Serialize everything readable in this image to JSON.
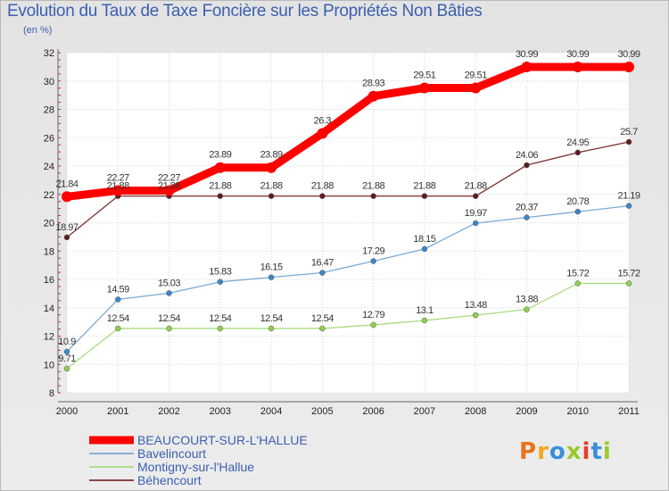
{
  "title": "Evolution du Taux de Taxe Foncière sur les Propriétés Non Bâties",
  "subtitle": "(en %)",
  "logo": {
    "text": "Proxiti",
    "colors": [
      "#e8731a",
      "#f2a81c",
      "#3a8fd6",
      "#9bc92d",
      "#e43e2a",
      "#3a8fd6",
      "#9bc92d"
    ]
  },
  "chart_data": {
    "type": "line",
    "title": "Evolution du Taux de Taxe Foncière sur les Propriétés Non Bâties",
    "ylabel": "(en %)",
    "xlabel": "",
    "x": [
      "2000",
      "2001",
      "2002",
      "2003",
      "2004",
      "2005",
      "2006",
      "2007",
      "2008",
      "2009",
      "2010",
      "2011"
    ],
    "ylim": [
      8,
      32
    ],
    "yticks": [
      8,
      10,
      12,
      14,
      16,
      18,
      20,
      22,
      24,
      26,
      28,
      30,
      32
    ],
    "grid": true,
    "legend_position": "bottom-left",
    "series": [
      {
        "name": "BEAUCOURT-SUR-L'HALLUE",
        "color": "#ff0000",
        "marker": "#ff0000",
        "emphasis": true,
        "values": [
          21.84,
          22.27,
          22.27,
          23.89,
          23.89,
          26.3,
          28.93,
          29.51,
          29.51,
          30.99,
          30.99,
          30.99
        ],
        "labels": [
          "21.84",
          "22.27",
          "22.27",
          "23.89",
          "23.89",
          "26.3",
          "28.93",
          "29.51",
          "29.51",
          "30.99",
          "30.99",
          "30.99"
        ]
      },
      {
        "name": "Bavelincourt",
        "color": "#7aaad4",
        "marker": "#3d86c6",
        "emphasis": false,
        "values": [
          10.9,
          14.59,
          15.03,
          15.83,
          16.15,
          16.47,
          17.29,
          18.15,
          19.97,
          20.37,
          20.78,
          21.19
        ],
        "labels": [
          "10.9",
          "14.59",
          "15.03",
          "15.83",
          "16.15",
          "16.47",
          "17.29",
          "18.15",
          "19.97",
          "20.37",
          "20.78",
          "21.19"
        ]
      },
      {
        "name": "Montigny-sur-l'Hallue",
        "color": "#a8dc80",
        "marker": "#8fd14f",
        "emphasis": false,
        "values": [
          9.71,
          12.54,
          12.54,
          12.54,
          12.54,
          12.54,
          12.79,
          13.1,
          13.48,
          13.88,
          15.72,
          15.72
        ],
        "labels": [
          "9.71",
          "12.54",
          "12.54",
          "12.54",
          "12.54",
          "12.54",
          "12.79",
          "13.1",
          "13.48",
          "13.88",
          "15.72",
          "15.72"
        ]
      },
      {
        "name": "Béhencourt",
        "color": "#7a2e2e",
        "marker": "#5c1d1d",
        "emphasis": false,
        "values": [
          18.97,
          21.88,
          21.88,
          21.88,
          21.88,
          21.88,
          21.88,
          21.88,
          21.88,
          24.06,
          24.95,
          25.7
        ],
        "labels": [
          "18.97",
          "21.88",
          "21.88",
          "21.88",
          "21.88",
          "21.88",
          "21.88",
          "21.88",
          "21.88",
          "24.06",
          "24.95",
          "25.7"
        ]
      }
    ]
  }
}
